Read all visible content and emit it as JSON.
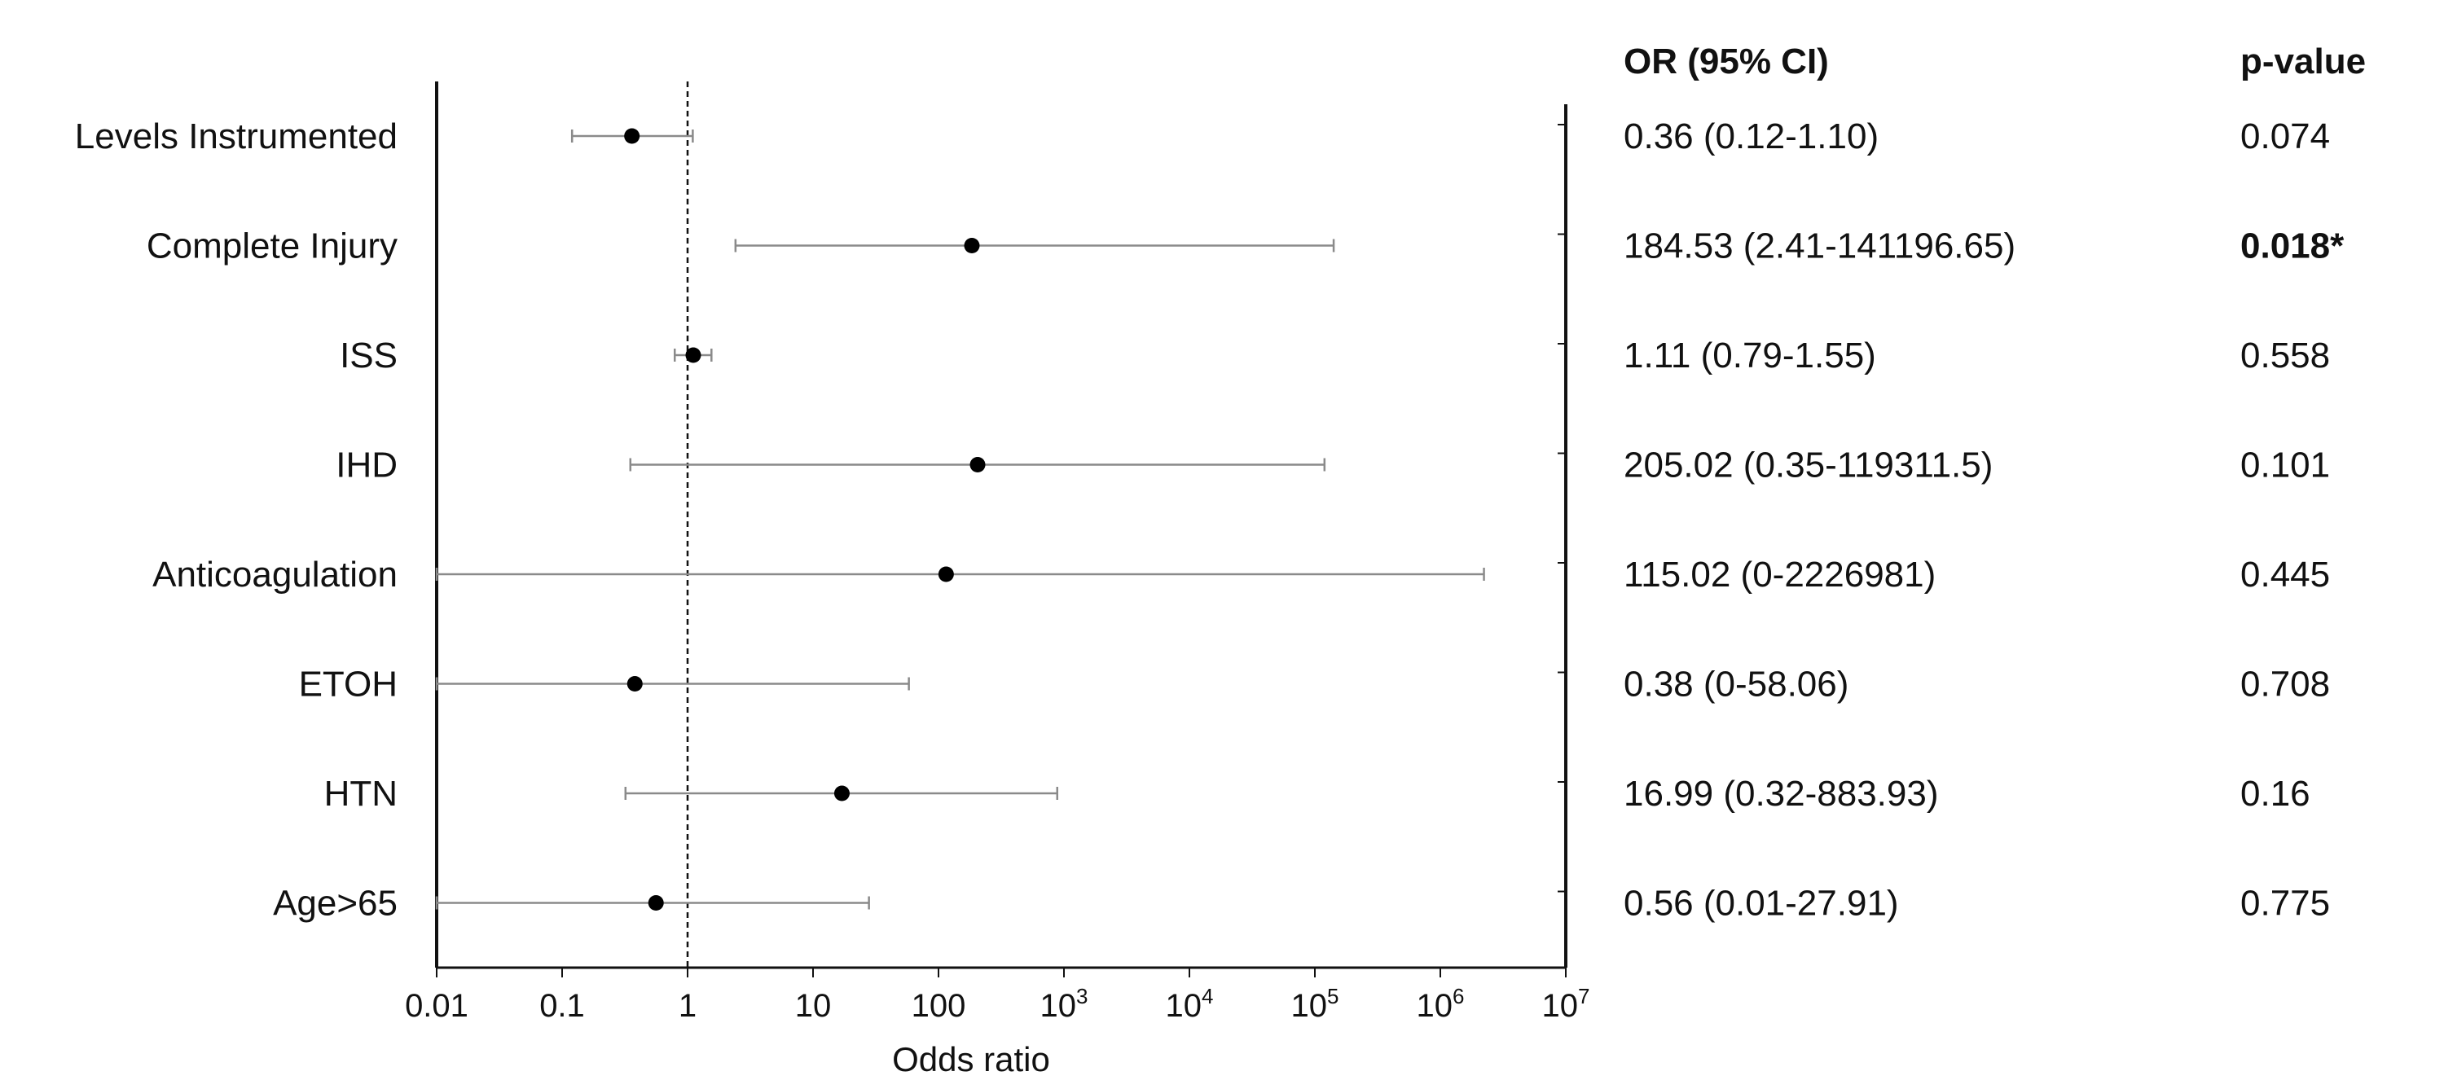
{
  "chart_data": {
    "type": "scatter",
    "subtype": "forest-plot",
    "title": "",
    "xlabel": "Odds ratio",
    "ylabel": "",
    "xscale": "log",
    "xlim": [
      0.01,
      10000000
    ],
    "xticks": [
      {
        "value": 0.01,
        "base": "0.01",
        "exp": ""
      },
      {
        "value": 0.1,
        "base": "0.1",
        "exp": ""
      },
      {
        "value": 1,
        "base": "1",
        "exp": ""
      },
      {
        "value": 10,
        "base": "10",
        "exp": ""
      },
      {
        "value": 100,
        "base": "100",
        "exp": ""
      },
      {
        "value": 1000,
        "base": "10",
        "exp": "3"
      },
      {
        "value": 10000,
        "base": "10",
        "exp": "4"
      },
      {
        "value": 100000,
        "base": "10",
        "exp": "5"
      },
      {
        "value": 1000000,
        "base": "10",
        "exp": "6"
      },
      {
        "value": 10000000,
        "base": "10",
        "exp": "7"
      }
    ],
    "reference_line": 1,
    "grid": false,
    "columns": {
      "or_header": "OR (95% CI)",
      "p_header": "p-value"
    },
    "rows": [
      {
        "label": "Levels Instrumented",
        "or": 0.36,
        "lo": 0.12,
        "hi": 1.1,
        "or_text": "0.36 (0.12-1.10)",
        "p": "0.074",
        "significant": false
      },
      {
        "label": "Complete Injury",
        "or": 184.53,
        "lo": 2.41,
        "hi": 141196.65,
        "or_text": "184.53 (2.41-141196.65)",
        "p": "0.018*",
        "significant": true
      },
      {
        "label": "ISS",
        "or": 1.11,
        "lo": 0.79,
        "hi": 1.55,
        "or_text": "1.11 (0.79-1.55)",
        "p": "0.558",
        "significant": false
      },
      {
        "label": "IHD",
        "or": 205.02,
        "lo": 0.35,
        "hi": 119311.5,
        "or_text": "205.02 (0.35-119311.5)",
        "p": "0.101",
        "significant": false
      },
      {
        "label": "Anticoagulation",
        "or": 115.02,
        "lo": 0,
        "hi": 2226981,
        "or_text": "115.02 (0-2226981)",
        "p": "0.445",
        "significant": false
      },
      {
        "label": "ETOH",
        "or": 0.38,
        "lo": 0,
        "hi": 58.06,
        "or_text": "0.38 (0-58.06)",
        "p": "0.708",
        "significant": false
      },
      {
        "label": "HTN",
        "or": 16.99,
        "lo": 0.32,
        "hi": 883.93,
        "or_text": "16.99 (0.32-883.93)",
        "p": "0.16",
        "significant": false
      },
      {
        "label": "Age>65",
        "or": 0.56,
        "lo": 0.01,
        "hi": 27.91,
        "or_text": "0.56 (0.01-27.91)",
        "p": "0.775",
        "significant": false
      }
    ]
  }
}
